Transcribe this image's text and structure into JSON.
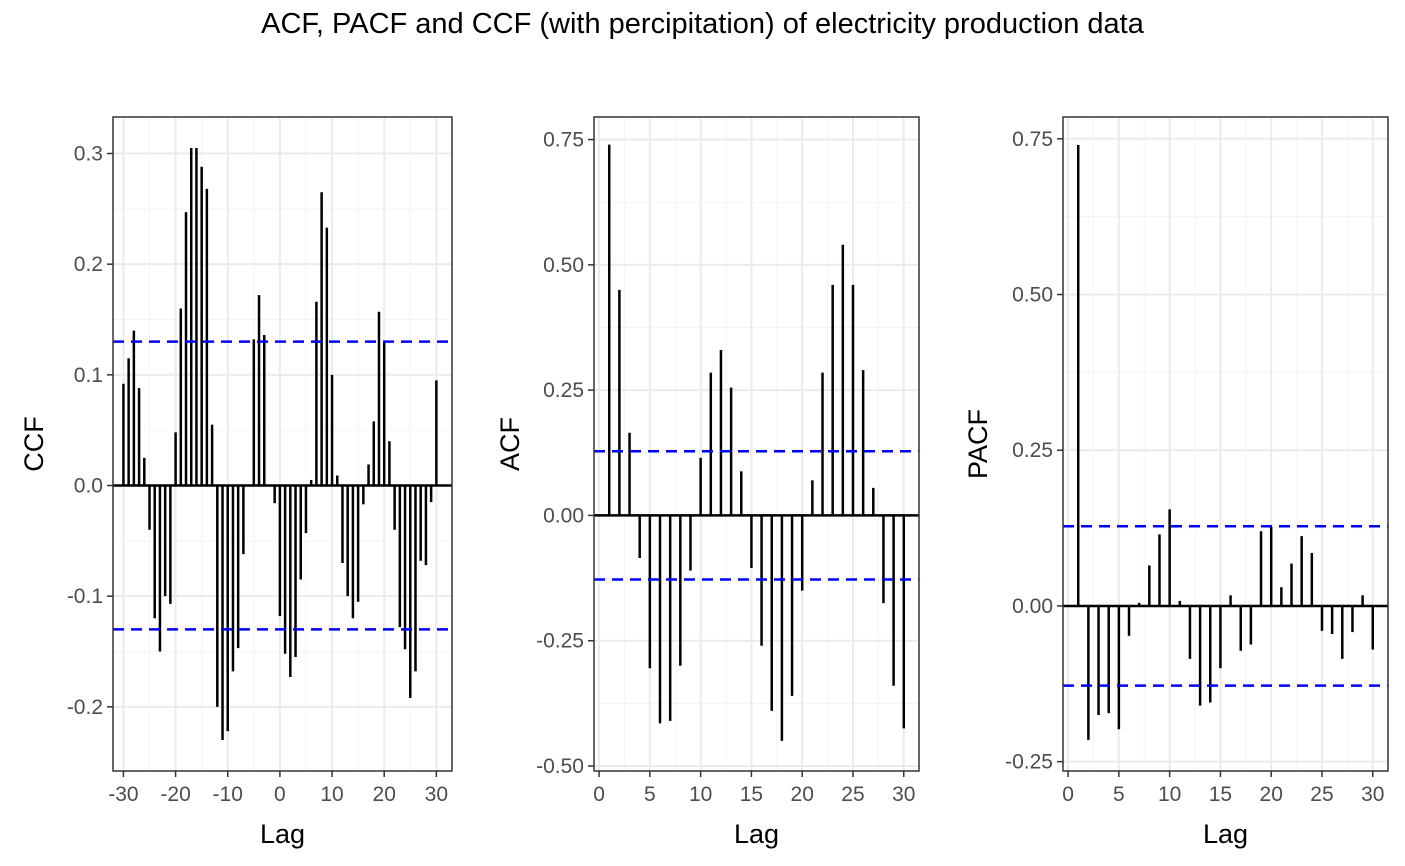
{
  "title": "ACF, PACF and CCF (with percipitation) of electricity production data",
  "chart_data": [
    {
      "type": "bar",
      "panel": "CCF",
      "xlabel": "Lag",
      "ylabel": "CCF",
      "xlim": [
        -32,
        33
      ],
      "ylim": [
        -0.258,
        0.333
      ],
      "xticks": [
        -30,
        -20,
        -10,
        0,
        10,
        20,
        30
      ],
      "xtick_labels": [
        "-30",
        "-20",
        "-10",
        "0",
        "10",
        "20",
        "30"
      ],
      "yticks": [
        -0.2,
        -0.1,
        0.0,
        0.1,
        0.2,
        0.3
      ],
      "ytick_labels": [
        "-0.2",
        "-0.1",
        "0.0",
        "0.1",
        "0.2",
        "0.3"
      ],
      "confidence_bound": 0.13,
      "x": [
        -30,
        -29,
        -28,
        -27,
        -26,
        -25,
        -24,
        -23,
        -22,
        -21,
        -20,
        -19,
        -18,
        -17,
        -16,
        -15,
        -14,
        -13,
        -12,
        -11,
        -10,
        -9,
        -8,
        -7,
        -6,
        -5,
        -4,
        -3,
        -2,
        -1,
        0,
        1,
        2,
        3,
        4,
        5,
        6,
        7,
        8,
        9,
        10,
        11,
        12,
        13,
        14,
        15,
        16,
        17,
        18,
        19,
        20,
        21,
        22,
        23,
        24,
        25,
        26,
        27,
        28,
        29,
        30
      ],
      "values": [
        0.092,
        0.115,
        0.14,
        0.088,
        0.025,
        -0.04,
        -0.12,
        -0.15,
        -0.1,
        -0.107,
        0.048,
        0.16,
        0.247,
        0.305,
        0.305,
        0.288,
        0.268,
        0.055,
        -0.2,
        -0.23,
        -0.222,
        -0.168,
        -0.147,
        -0.062,
        0.0,
        0.132,
        0.172,
        0.136,
        0.0,
        -0.016,
        -0.118,
        -0.152,
        -0.173,
        -0.155,
        -0.085,
        -0.043,
        0.005,
        0.166,
        0.265,
        0.233,
        0.1,
        0.009,
        -0.07,
        -0.1,
        -0.12,
        -0.105,
        -0.017,
        0.019,
        0.058,
        0.157,
        0.129,
        0.04,
        -0.04,
        -0.128,
        -0.148,
        -0.192,
        -0.168,
        -0.068,
        -0.072,
        -0.015,
        0.095
      ]
    },
    {
      "type": "bar",
      "panel": "ACF",
      "xlabel": "Lag",
      "ylabel": "ACF",
      "xlim": [
        -0.5,
        31.5
      ],
      "ylim": [
        -0.51,
        0.795
      ],
      "xticks": [
        0,
        5,
        10,
        15,
        20,
        25,
        30
      ],
      "xtick_labels": [
        "0",
        "5",
        "10",
        "15",
        "20",
        "25",
        "30"
      ],
      "yticks": [
        -0.5,
        -0.25,
        0.0,
        0.25,
        0.5,
        0.75
      ],
      "ytick_labels": [
        "-0.50",
        "-0.25",
        "0.00",
        "0.25",
        "0.50",
        "0.75"
      ],
      "confidence_bound": 0.128,
      "x": [
        1,
        2,
        3,
        4,
        5,
        6,
        7,
        8,
        9,
        10,
        11,
        12,
        13,
        14,
        15,
        16,
        17,
        18,
        19,
        20,
        21,
        22,
        23,
        24,
        25,
        26,
        27,
        28,
        29,
        30
      ],
      "values": [
        0.74,
        0.45,
        0.165,
        -0.085,
        -0.305,
        -0.415,
        -0.41,
        -0.3,
        -0.11,
        0.115,
        0.285,
        0.33,
        0.255,
        0.088,
        -0.105,
        -0.26,
        -0.39,
        -0.45,
        -0.36,
        -0.15,
        0.07,
        0.285,
        0.46,
        0.54,
        0.46,
        0.29,
        0.055,
        -0.175,
        -0.34,
        -0.425
      ]
    },
    {
      "type": "bar",
      "panel": "PACF",
      "xlabel": "Lag",
      "ylabel": "PACF",
      "xlim": [
        -0.5,
        31.5
      ],
      "ylim": [
        -0.265,
        0.785
      ],
      "xticks": [
        0,
        5,
        10,
        15,
        20,
        25,
        30
      ],
      "xtick_labels": [
        "0",
        "5",
        "10",
        "15",
        "20",
        "25",
        "30"
      ],
      "yticks": [
        -0.25,
        0.0,
        0.25,
        0.5,
        0.75
      ],
      "ytick_labels": [
        "-0.25",
        "0.00",
        "0.25",
        "0.50",
        "0.75"
      ],
      "confidence_bound": 0.128,
      "x": [
        1,
        2,
        3,
        4,
        5,
        6,
        7,
        8,
        9,
        10,
        11,
        12,
        13,
        14,
        15,
        16,
        17,
        18,
        19,
        20,
        21,
        22,
        23,
        24,
        25,
        26,
        27,
        28,
        29,
        30
      ],
      "values": [
        0.74,
        -0.215,
        -0.175,
        -0.172,
        -0.198,
        -0.048,
        0.005,
        0.065,
        0.115,
        0.155,
        0.008,
        -0.085,
        -0.16,
        -0.155,
        -0.1,
        0.017,
        -0.072,
        -0.062,
        0.12,
        0.127,
        0.03,
        0.068,
        0.112,
        0.085,
        -0.04,
        -0.045,
        -0.085,
        -0.042,
        0.017,
        -0.07
      ]
    }
  ],
  "colors": {
    "bars": "#000000",
    "confidence_line": "#0000ff",
    "grid_major": "#ebebeb",
    "grid_minor": "#f5f5f5",
    "panel_border": "#333333"
  }
}
